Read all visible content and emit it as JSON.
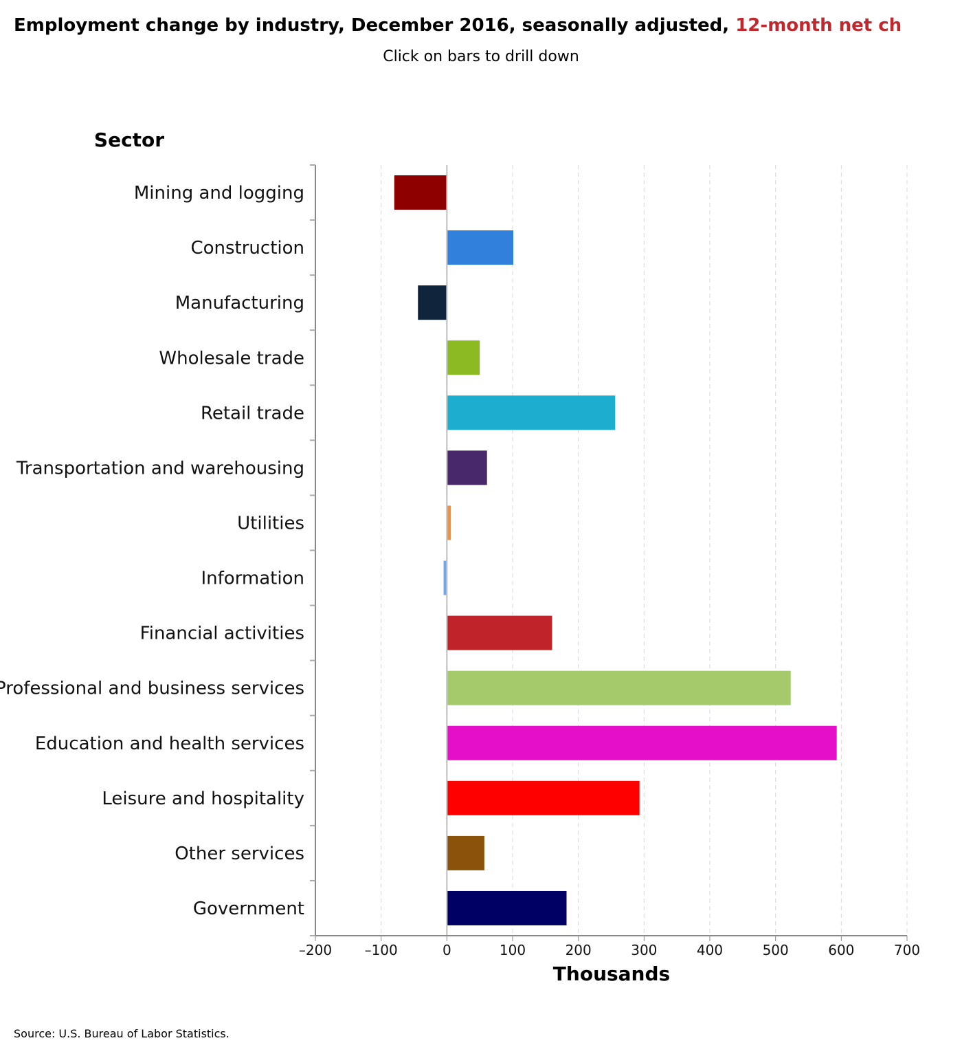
{
  "header": {
    "title_main": "Employment change by industry, December 2016, seasonally adjusted,",
    "title_highlight": "12-month net ch",
    "subtitle": "Click on bars to drill down"
  },
  "footer": {
    "source": "Source: U.S. Bureau of Labor Statistics."
  },
  "chart_data": {
    "type": "bar",
    "orientation": "horizontal",
    "categories": [
      "Mining and logging",
      "Construction",
      "Manufacturing",
      "Wholesale trade",
      "Retail trade",
      "Transportation and warehousing",
      "Utilities",
      "Information",
      "Financial activities",
      "Professional and business services",
      "Education and health services",
      "Leisure and hospitality",
      "Other services",
      "Government"
    ],
    "values": [
      -80,
      100,
      -44,
      49,
      255,
      60,
      5,
      -5,
      159,
      522,
      592,
      292,
      56,
      181
    ],
    "colors": [
      "#8e0000",
      "#3080dc",
      "#10243c",
      "#8cba22",
      "#1cadcf",
      "#48276b",
      "#f09040",
      "#78a4e6",
      "#c02329",
      "#a5ca6b",
      "#e60fc9",
      "#ff0000",
      "#8a520b",
      "#000064"
    ],
    "xlabel": "Thousands",
    "ylabel": "Sector",
    "xlim": [
      -200,
      700
    ],
    "xticks": [
      -200,
      -100,
      0,
      100,
      200,
      300,
      400,
      500,
      600,
      700
    ],
    "xtick_labels": [
      "–200",
      "–100",
      "0",
      "100",
      "200",
      "300",
      "400",
      "500",
      "600",
      "700"
    ],
    "grid": true
  }
}
